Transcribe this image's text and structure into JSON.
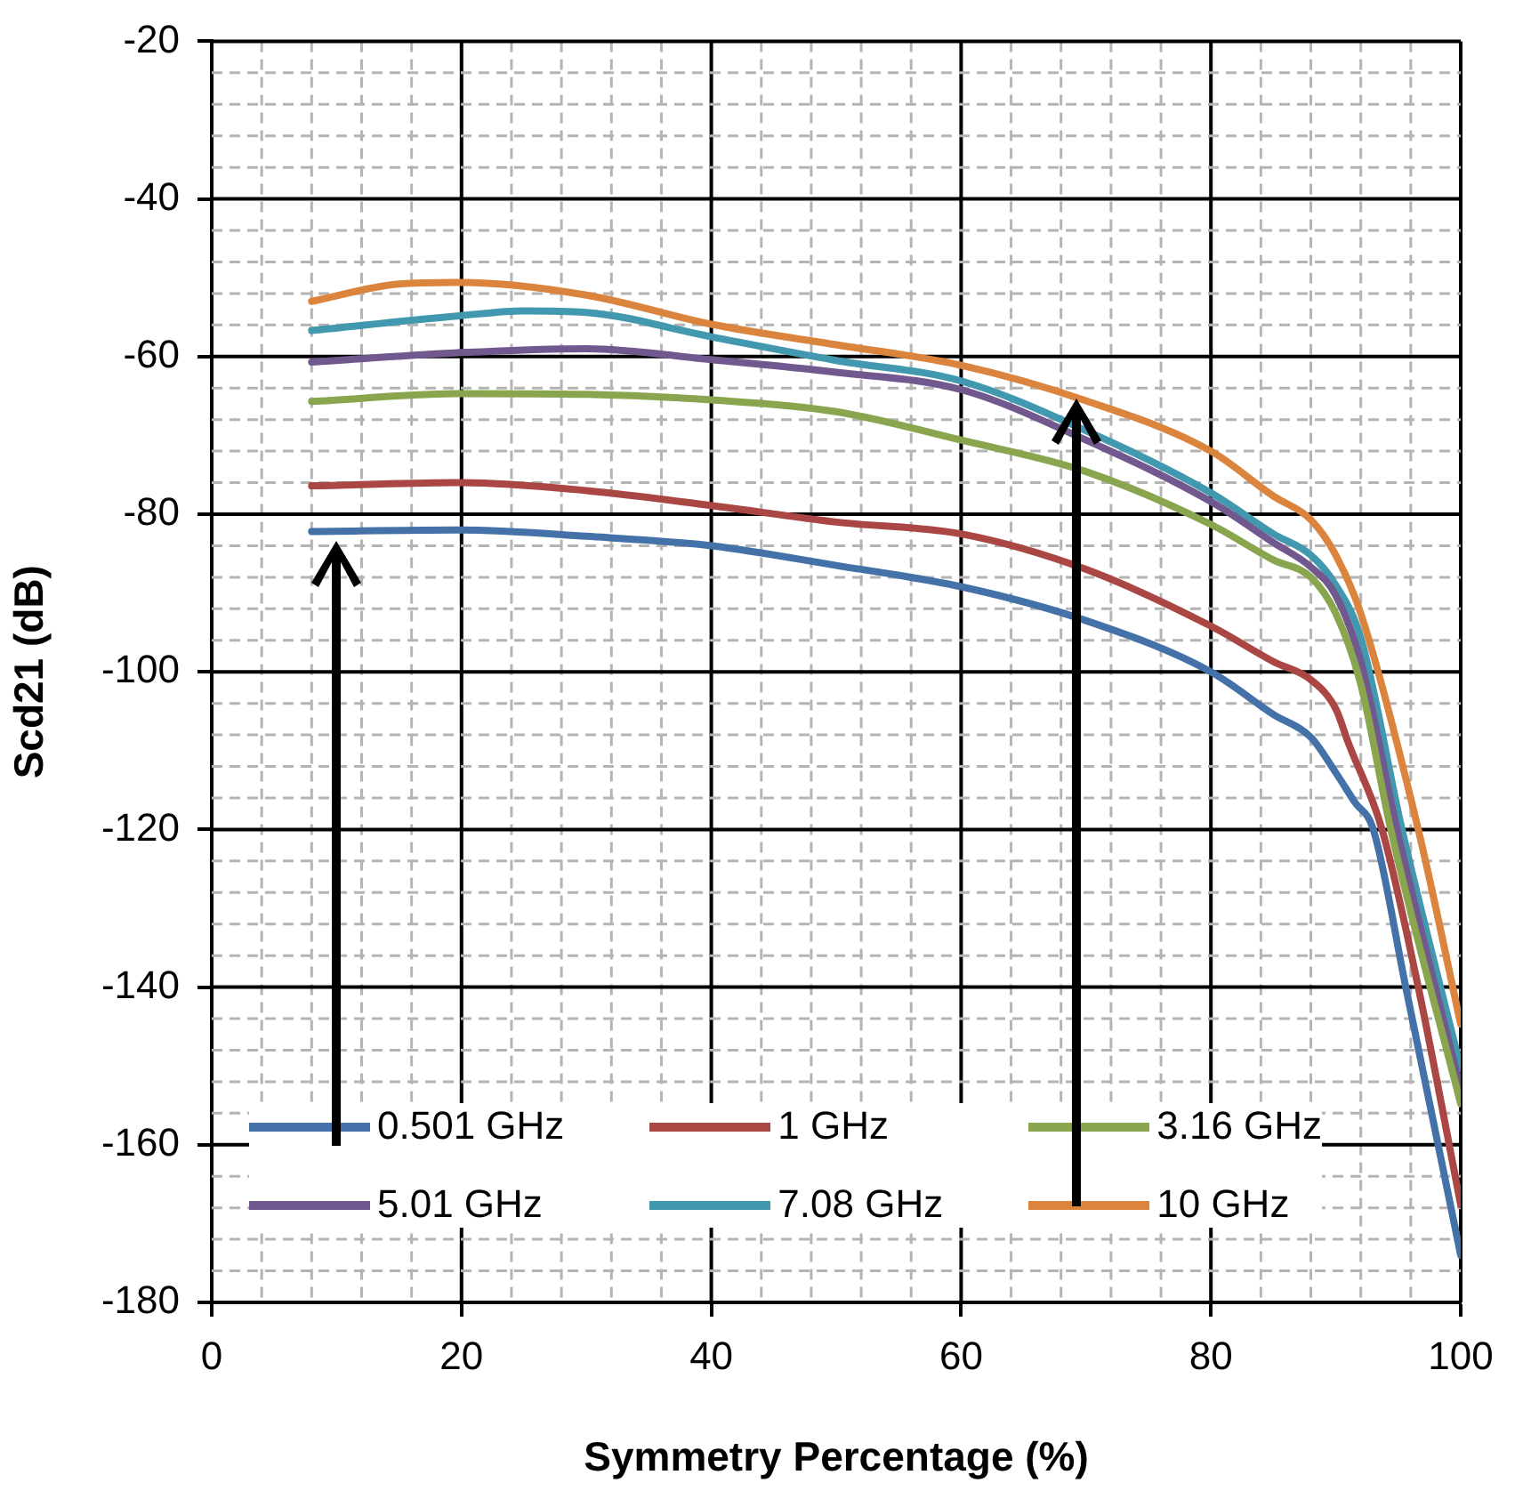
{
  "chart_data": {
    "type": "line",
    "xlabel": "Symmetry Percentage (%)",
    "ylabel": "Scd21 (dB)",
    "xlim": [
      0,
      100
    ],
    "ylim": [
      -180,
      -20
    ],
    "xticks": [
      0,
      {
        "value": 4,
        "label": null
      },
      {
        "value": 8,
        "label": null
      },
      {
        "value": 12,
        "label": null
      },
      {
        "value": 16,
        "label": null
      },
      20,
      {
        "value": 24,
        "label": null
      },
      {
        "value": 28,
        "label": null
      },
      {
        "value": 32,
        "label": null
      },
      {
        "value": 36,
        "label": null
      },
      40,
      {
        "value": 44,
        "label": null
      },
      {
        "value": 48,
        "label": null
      },
      {
        "value": 52,
        "label": null
      },
      {
        "value": 56,
        "label": null
      },
      60,
      {
        "value": 64,
        "label": null
      },
      {
        "value": 68,
        "label": null
      },
      {
        "value": 72,
        "label": null
      },
      {
        "value": 76,
        "label": null
      },
      80,
      {
        "value": 84,
        "label": null
      },
      {
        "value": 88,
        "label": null
      },
      {
        "value": 92,
        "label": null
      },
      {
        "value": 96,
        "label": null
      },
      100
    ],
    "yticks": [
      -180,
      {
        "value": -176,
        "label": null
      },
      {
        "value": -172,
        "label": null
      },
      {
        "value": -168,
        "label": null
      },
      {
        "value": -164,
        "label": null
      },
      -160,
      {
        "value": -156,
        "label": null
      },
      {
        "value": -152,
        "label": null
      },
      {
        "value": -148,
        "label": null
      },
      {
        "value": -144,
        "label": null
      },
      -140,
      {
        "value": -136,
        "label": null
      },
      {
        "value": -132,
        "label": null
      },
      {
        "value": -128,
        "label": null
      },
      {
        "value": -124,
        "label": null
      },
      -120,
      {
        "value": -116,
        "label": null
      },
      {
        "value": -112,
        "label": null
      },
      {
        "value": -108,
        "label": null
      },
      {
        "value": -104,
        "label": null
      },
      -100,
      {
        "value": -96,
        "label": null
      },
      {
        "value": -92,
        "label": null
      },
      {
        "value": -88,
        "label": null
      },
      {
        "value": -84,
        "label": null
      },
      -80,
      {
        "value": -76,
        "label": null
      },
      {
        "value": -72,
        "label": null
      },
      {
        "value": -68,
        "label": null
      },
      {
        "value": -64,
        "label": null
      },
      -60,
      {
        "value": -56,
        "label": null
      },
      {
        "value": -52,
        "label": null
      },
      {
        "value": -48,
        "label": null
      },
      {
        "value": -44,
        "label": null
      },
      -40,
      {
        "value": -36,
        "label": null
      },
      {
        "value": -32,
        "label": null
      },
      {
        "value": -28,
        "label": null
      },
      {
        "value": -24,
        "label": null
      },
      -20
    ],
    "grid": true,
    "legend": "bottom",
    "marker": "none",
    "line_style": "solid",
    "series": [
      {
        "name": "0.501 GHz",
        "color": "#4472a8",
        "x": [
          8,
          20,
          30,
          40,
          50,
          60,
          70,
          80,
          85,
          88,
          90,
          91.5,
          93,
          95.6,
          100
        ],
        "values": [
          -82.2,
          -82,
          -82.8,
          -84,
          -86.5,
          -89.2,
          -93.5,
          -100,
          -105.4,
          -108.3,
          -112.8,
          -116.5,
          -120,
          -140,
          -174
        ]
      },
      {
        "name": "1 GHz",
        "color": "#aa4643",
        "x": [
          8,
          20,
          30,
          40,
          50,
          60,
          70,
          80,
          85,
          88,
          90,
          91,
          93.7,
          96.6,
          100
        ],
        "values": [
          -76.4,
          -76,
          -77,
          -78.9,
          -81,
          -82.5,
          -87,
          -94.2,
          -98.7,
          -101,
          -104.7,
          -109,
          -120,
          -140,
          -167.6
        ]
      },
      {
        "name": "3.16 GHz",
        "color": "#89a54e",
        "x": [
          8,
          20,
          30,
          40,
          50,
          60,
          70,
          80,
          85,
          88,
          90,
          92,
          94.4,
          100
        ],
        "values": [
          -65.7,
          -64.7,
          -64.8,
          -65.5,
          -67,
          -70.6,
          -74.6,
          -81.3,
          -85.8,
          -88,
          -92.6,
          -101.6,
          -120,
          -154.8
        ]
      },
      {
        "name": "5.01 GHz",
        "color": "#71588f",
        "x": [
          8,
          20,
          30,
          40,
          50,
          60,
          70,
          80,
          85,
          88,
          90,
          92,
          94.9,
          100
        ],
        "values": [
          -60.7,
          -59.5,
          -59,
          -60.4,
          -62,
          -64.2,
          -70.6,
          -78.4,
          -83.6,
          -86.7,
          -90.3,
          -98.7,
          -120,
          -153
        ]
      },
      {
        "name": "7.08 GHz",
        "color": "#4198af",
        "x": [
          8,
          20,
          25,
          30,
          40,
          50,
          60,
          70,
          80,
          85,
          88,
          90,
          92,
          95.3,
          100
        ],
        "values": [
          -56.7,
          -54.8,
          -54.2,
          -54.4,
          -57.5,
          -60.5,
          -63.1,
          -69.4,
          -77.3,
          -82.5,
          -85.2,
          -89,
          -95.7,
          -120,
          -150.3
        ]
      },
      {
        "name": "10 GHz",
        "color": "#db843d",
        "x": [
          8,
          15,
          20,
          30,
          40,
          50,
          60,
          70,
          80,
          85,
          88,
          90,
          92,
          96.6,
          100
        ],
        "values": [
          -53,
          -50.8,
          -50.6,
          -52.2,
          -55.9,
          -58.5,
          -61.1,
          -65.6,
          -72,
          -77.7,
          -80.7,
          -85.2,
          -92.6,
          -120,
          -144.7
        ]
      }
    ]
  }
}
